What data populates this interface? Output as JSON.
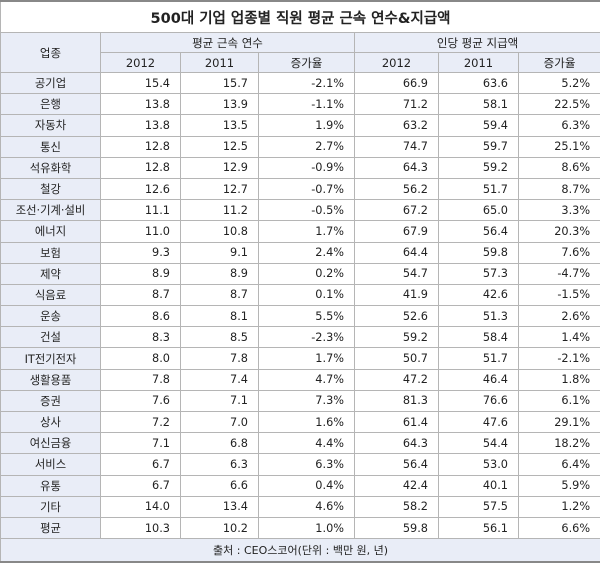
{
  "title": "500대 기업 업종별 직원 평균 근속 연수&지급액",
  "header": {
    "industry": "업종",
    "group_tenure": "평균 근속 연수",
    "group_pay": "인당 평균 지급액",
    "year_a": "2012",
    "year_b": "2011",
    "change": "증가율"
  },
  "rows": [
    {
      "name": "공기업",
      "t2012": "15.4",
      "t2011": "15.7",
      "tchg": "-2.1%",
      "p2012": "66.9",
      "p2011": "63.6",
      "pchg": "5.2%"
    },
    {
      "name": "은행",
      "t2012": "13.8",
      "t2011": "13.9",
      "tchg": "-1.1%",
      "p2012": "71.2",
      "p2011": "58.1",
      "pchg": "22.5%"
    },
    {
      "name": "자동차",
      "t2012": "13.8",
      "t2011": "13.5",
      "tchg": "1.9%",
      "p2012": "63.2",
      "p2011": "59.4",
      "pchg": "6.3%"
    },
    {
      "name": "통신",
      "t2012": "12.8",
      "t2011": "12.5",
      "tchg": "2.7%",
      "p2012": "74.7",
      "p2011": "59.7",
      "pchg": "25.1%"
    },
    {
      "name": "석유화학",
      "t2012": "12.8",
      "t2011": "12.9",
      "tchg": "-0.9%",
      "p2012": "64.3",
      "p2011": "59.2",
      "pchg": "8.6%"
    },
    {
      "name": "철강",
      "t2012": "12.6",
      "t2011": "12.7",
      "tchg": "-0.7%",
      "p2012": "56.2",
      "p2011": "51.7",
      "pchg": "8.7%"
    },
    {
      "name": "조선·기계·설비",
      "t2012": "11.1",
      "t2011": "11.2",
      "tchg": "-0.5%",
      "p2012": "67.2",
      "p2011": "65.0",
      "pchg": "3.3%"
    },
    {
      "name": "에너지",
      "t2012": "11.0",
      "t2011": "10.8",
      "tchg": "1.7%",
      "p2012": "67.9",
      "p2011": "56.4",
      "pchg": "20.3%"
    },
    {
      "name": "보험",
      "t2012": "9.3",
      "t2011": "9.1",
      "tchg": "2.4%",
      "p2012": "64.4",
      "p2011": "59.8",
      "pchg": "7.6%"
    },
    {
      "name": "제약",
      "t2012": "8.9",
      "t2011": "8.9",
      "tchg": "0.2%",
      "p2012": "54.7",
      "p2011": "57.3",
      "pchg": "-4.7%"
    },
    {
      "name": "식음료",
      "t2012": "8.7",
      "t2011": "8.7",
      "tchg": "0.1%",
      "p2012": "41.9",
      "p2011": "42.6",
      "pchg": "-1.5%"
    },
    {
      "name": "운송",
      "t2012": "8.6",
      "t2011": "8.1",
      "tchg": "5.5%",
      "p2012": "52.6",
      "p2011": "51.3",
      "pchg": "2.6%"
    },
    {
      "name": "건설",
      "t2012": "8.3",
      "t2011": "8.5",
      "tchg": "-2.3%",
      "p2012": "59.2",
      "p2011": "58.4",
      "pchg": "1.4%"
    },
    {
      "name": "IT전기전자",
      "t2012": "8.0",
      "t2011": "7.8",
      "tchg": "1.7%",
      "p2012": "50.7",
      "p2011": "51.7",
      "pchg": "-2.1%"
    },
    {
      "name": "생활용품",
      "t2012": "7.8",
      "t2011": "7.4",
      "tchg": "4.7%",
      "p2012": "47.2",
      "p2011": "46.4",
      "pchg": "1.8%"
    },
    {
      "name": "증권",
      "t2012": "7.6",
      "t2011": "7.1",
      "tchg": "7.3%",
      "p2012": "81.3",
      "p2011": "76.6",
      "pchg": "6.1%"
    },
    {
      "name": "상사",
      "t2012": "7.2",
      "t2011": "7.0",
      "tchg": "1.6%",
      "p2012": "61.4",
      "p2011": "47.6",
      "pchg": "29.1%"
    },
    {
      "name": "여신금융",
      "t2012": "7.1",
      "t2011": "6.8",
      "tchg": "4.4%",
      "p2012": "64.3",
      "p2011": "54.4",
      "pchg": "18.2%"
    },
    {
      "name": "서비스",
      "t2012": "6.7",
      "t2011": "6.3",
      "tchg": "6.3%",
      "p2012": "56.4",
      "p2011": "53.0",
      "pchg": "6.4%"
    },
    {
      "name": "유통",
      "t2012": "6.7",
      "t2011": "6.6",
      "tchg": "0.4%",
      "p2012": "42.4",
      "p2011": "40.1",
      "pchg": "5.9%"
    },
    {
      "name": "기타",
      "t2012": "14.0",
      "t2011": "13.4",
      "tchg": "4.6%",
      "p2012": "58.2",
      "p2011": "57.5",
      "pchg": "1.2%"
    },
    {
      "name": "평균",
      "t2012": "10.3",
      "t2011": "10.2",
      "tchg": "1.0%",
      "p2012": "59.8",
      "p2011": "56.1",
      "pchg": "6.6%"
    }
  ],
  "footer": "출처 : CEO스코어(단위 : 백만 원, 년)"
}
